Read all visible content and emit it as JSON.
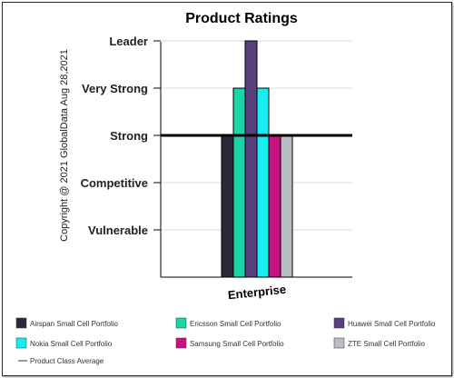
{
  "chart_data": {
    "type": "bar",
    "title": "Product Ratings",
    "categories": [
      "Enterprise"
    ],
    "y_levels": [
      "Vulnerable",
      "Competitive",
      "Strong",
      "Very Strong",
      "Leader"
    ],
    "ylim": [
      0,
      5
    ],
    "series": [
      {
        "name": "Airspan Small Cell Portfolio",
        "values": [
          3
        ],
        "color": "#2b2a3d"
      },
      {
        "name": "Ericsson Small Cell Portfolio",
        "values": [
          4
        ],
        "color": "#1ed3a6"
      },
      {
        "name": "Huawei Small Cell Portfolio",
        "values": [
          5
        ],
        "color": "#5a3f7f"
      },
      {
        "name": "Nokia Small Cell Portfolio",
        "values": [
          4
        ],
        "color": "#18ecef"
      },
      {
        "name": "Samsung Small Cell Portfolio",
        "values": [
          3
        ],
        "color": "#c8127f"
      },
      {
        "name": "ZTE Small Cell Portfolio",
        "values": [
          3
        ],
        "color": "#b9bcc3"
      }
    ],
    "average": {
      "name": "Product Class Average",
      "value": 3
    },
    "grid": true,
    "legend_position": "bottom"
  },
  "watermark": "Copyright @ 2021 GlobalData Aug 28,2021"
}
